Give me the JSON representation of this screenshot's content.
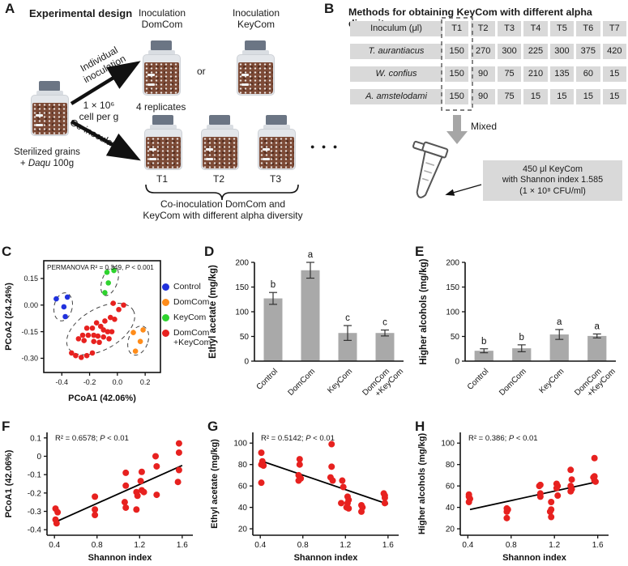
{
  "panel_labels": {
    "A": "A",
    "B": "B",
    "C": "C",
    "D": "D",
    "E": "E",
    "F": "F",
    "G": "G",
    "H": "H"
  },
  "colors": {
    "red": "#e7211f",
    "blue": "#2132dd",
    "orange": "#ff8c1a",
    "green": "#2fd32f",
    "bar": "#a9a9a9",
    "cell_bg": "#d9d9d9",
    "gray_arrow": "#a6a6a6",
    "cap": "#6b7584",
    "glass": "#e3e6ea",
    "grain": "#7c4a36"
  },
  "panels": {
    "A": {
      "title": "Experimental design",
      "inoc_domcom": "Inoculation\nDomCom",
      "inoc_keycom": "Inoculation\nKeyCom",
      "or": "or",
      "individual": "Individual\ninoculation",
      "cell_per_g": "1 × 10⁶\ncell per g",
      "co_inoculation": "Co-inoculation",
      "replicates": "4 replicates",
      "sterilized_pre": "Sterilized grains\n+ ",
      "sterilized_italic": "Daqu",
      "sterilized_post": " 100g",
      "t_labels": [
        "T1",
        "T2",
        "T3"
      ],
      "dots": "●  ●  ●",
      "bracket_caption": "Co-inoculation DomCom and\nKeyCom with different alpha diversity"
    },
    "B": {
      "title": "Methods for obtaining KeyCom with different alpha diversity",
      "table": {
        "header": [
          "Inoculum (μl)",
          "T1",
          "T2",
          "T3",
          "T4",
          "T5",
          "T6",
          "T7"
        ],
        "rows": [
          [
            "T. aurantiacus",
            "150",
            "270",
            "300",
            "225",
            "300",
            "375",
            "420"
          ],
          [
            "W. confius",
            "150",
            "90",
            "75",
            "210",
            "135",
            "60",
            "15"
          ],
          [
            "A. amstelodami",
            "150",
            "90",
            "75",
            "15",
            "15",
            "15",
            "15"
          ]
        ]
      },
      "mixed_label": "Mixed",
      "callout": "450 μl KeyCom\nwith Shannon index 1.585\n(1 × 10⁸ CFU/ml)"
    }
  },
  "chart_data": {
    "C": {
      "type": "scatter",
      "frame": true,
      "xlabel": "PCoA1 (42.06%)",
      "ylabel": "PCoA2 (24.24%)",
      "xlim": [
        -0.53,
        0.31
      ],
      "ylim": [
        -0.38,
        0.25
      ],
      "xticks": [
        [
          -0.4,
          "-0.4"
        ],
        [
          -0.2,
          "-0.2"
        ],
        [
          0,
          "0.0"
        ],
        [
          0.2,
          "0.2"
        ]
      ],
      "yticks": [
        [
          0.15,
          "0.15"
        ],
        [
          0,
          "0.00"
        ],
        [
          -0.15,
          "-0.15"
        ],
        [
          -0.3,
          "-0.30"
        ]
      ],
      "annotation": [
        [
          "PERMANOVA R² = 0.349, ",
          0
        ],
        [
          "P",
          1
        ],
        [
          " < 0.001",
          0
        ]
      ],
      "groups": [
        {
          "name": "Control",
          "color": "#2132dd",
          "points": [
            [
              -0.44,
              0.035
            ],
            [
              -0.36,
              0.045
            ],
            [
              -0.385,
              -0.01
            ],
            [
              -0.375,
              -0.065
            ]
          ]
        },
        {
          "name": "DomCom",
          "color": "#ff8c1a",
          "points": [
            [
              0.115,
              -0.155
            ],
            [
              0.185,
              -0.14
            ],
            [
              0.165,
              -0.205
            ],
            [
              0.13,
              -0.26
            ]
          ]
        },
        {
          "name": "KeyCom",
          "color": "#2fd32f",
          "points": [
            [
              -0.075,
              0.185
            ],
            [
              -0.025,
              0.195
            ],
            [
              -0.065,
              0.125
            ],
            [
              -0.09,
              0.07
            ]
          ]
        },
        {
          "name": "DomCom\n+KeyCom",
          "color": "#e7211f",
          "points": [
            [
              -0.03,
              0.01
            ],
            [
              0.045,
              0.0
            ],
            [
              0.01,
              -0.025
            ],
            [
              -0.05,
              -0.07
            ],
            [
              -0.02,
              -0.08
            ],
            [
              -0.09,
              -0.09
            ],
            [
              -0.15,
              -0.1
            ],
            [
              -0.12,
              -0.12
            ],
            [
              -0.18,
              -0.13
            ],
            [
              -0.22,
              -0.13
            ],
            [
              -0.1,
              -0.14
            ],
            [
              -0.07,
              -0.15
            ],
            [
              -0.04,
              -0.15
            ],
            [
              -0.25,
              -0.17
            ],
            [
              -0.21,
              -0.17
            ],
            [
              -0.17,
              -0.17
            ],
            [
              -0.14,
              -0.175
            ],
            [
              -0.1,
              -0.18
            ],
            [
              -0.28,
              -0.19
            ],
            [
              -0.24,
              -0.2
            ],
            [
              -0.17,
              -0.205
            ],
            [
              -0.13,
              -0.21
            ],
            [
              -0.06,
              -0.19
            ],
            [
              -0.33,
              -0.27
            ],
            [
              -0.3,
              -0.285
            ],
            [
              -0.26,
              -0.295
            ],
            [
              -0.22,
              -0.285
            ],
            [
              -0.18,
              -0.27
            ]
          ]
        }
      ],
      "ellipses": [
        {
          "cx": -0.39,
          "cy": -0.01,
          "rx": 0.065,
          "ry": 0.08,
          "rot": 12
        },
        {
          "cx": -0.055,
          "cy": 0.135,
          "rx": 0.055,
          "ry": 0.085,
          "rot": 20
        },
        {
          "cx": 0.15,
          "cy": -0.2,
          "rx": 0.07,
          "ry": 0.085,
          "rot": 20
        },
        {
          "cx": -0.12,
          "cy": -0.135,
          "rx": 0.27,
          "ry": 0.115,
          "rot": -30
        }
      ]
    },
    "D": {
      "type": "bar",
      "ylabel": "Ethyl acetate (mg/kg)",
      "ylim": [
        0,
        200
      ],
      "yticks": [
        [
          0,
          "0"
        ],
        [
          50,
          "50"
        ],
        [
          100,
          "100"
        ],
        [
          150,
          "150"
        ],
        [
          200,
          "200"
        ]
      ],
      "categories": [
        [
          "Control"
        ],
        [
          "DomCom"
        ],
        [
          "KeyCom"
        ],
        [
          "DomCom",
          "+KeyCom"
        ]
      ],
      "values": [
        127,
        184,
        57,
        57
      ],
      "errors": [
        12,
        16,
        15,
        6
      ],
      "letters": [
        "b",
        "a",
        "c",
        "c"
      ],
      "bar_color": "#a9a9a9"
    },
    "E": {
      "type": "bar",
      "ylabel": "Higher alcohols (mg/kg)",
      "ylim": [
        0,
        200
      ],
      "yticks": [
        [
          0,
          "0"
        ],
        [
          50,
          "50"
        ],
        [
          100,
          "100"
        ],
        [
          150,
          "150"
        ],
        [
          200,
          "200"
        ]
      ],
      "categories": [
        [
          "Control"
        ],
        [
          "DomCom"
        ],
        [
          "KeyCom"
        ],
        [
          "DomCom",
          "+KeyCom"
        ]
      ],
      "values": [
        21,
        26,
        54,
        51
      ],
      "errors": [
        4,
        7,
        10,
        4
      ],
      "letters": [
        "b",
        "b",
        "a",
        "a"
      ],
      "bar_color": "#a9a9a9"
    },
    "F": {
      "type": "scatter",
      "frame": false,
      "xlabel": "Shannon index",
      "ylabel": "PCoA1 (42.06%)",
      "xlim": [
        0.33,
        1.7
      ],
      "ylim": [
        -0.43,
        0.13
      ],
      "xticks": [
        [
          0.4,
          "0.4"
        ],
        [
          0.8,
          "0.8"
        ],
        [
          1.2,
          "1.2"
        ],
        [
          1.6,
          "1.6"
        ]
      ],
      "yticks": [
        [
          0.1,
          "0.1"
        ],
        [
          0,
          "0"
        ],
        [
          -0.1,
          "-0.1"
        ],
        [
          -0.2,
          "-0.2"
        ],
        [
          -0.3,
          "-0.3"
        ],
        [
          -0.4,
          "-0.4"
        ]
      ],
      "annotation": [
        [
          "R² = 0.6578; ",
          0
        ],
        [
          "P",
          1
        ],
        [
          " < 0.01",
          0
        ]
      ],
      "line": [
        [
          0.42,
          -0.355
        ],
        [
          1.6,
          -0.05
        ]
      ],
      "groups": [
        {
          "name": "samples",
          "color": "#e7211f",
          "points": [
            [
              0.41,
              -0.285
            ],
            [
              0.43,
              -0.305
            ],
            [
              0.41,
              -0.345
            ],
            [
              0.42,
              -0.365
            ],
            [
              0.78,
              -0.22
            ],
            [
              0.78,
              -0.29
            ],
            [
              0.78,
              -0.32
            ],
            [
              1.07,
              -0.09
            ],
            [
              1.07,
              -0.16
            ],
            [
              1.06,
              -0.25
            ],
            [
              1.07,
              -0.28
            ],
            [
              1.17,
              -0.195
            ],
            [
              1.18,
              -0.215
            ],
            [
              1.17,
              -0.29
            ],
            [
              1.22,
              -0.085
            ],
            [
              1.21,
              -0.135
            ],
            [
              1.22,
              -0.185
            ],
            [
              1.24,
              -0.195
            ],
            [
              1.35,
              0.0
            ],
            [
              1.36,
              -0.055
            ],
            [
              1.36,
              -0.21
            ],
            [
              1.57,
              0.07
            ],
            [
              1.57,
              0.02
            ],
            [
              1.57,
              -0.075
            ],
            [
              1.56,
              -0.14
            ]
          ]
        }
      ]
    },
    "G": {
      "type": "scatter",
      "frame": false,
      "xlabel": "Shannon index",
      "ylabel": "Ethyl acetate (mg/kg)",
      "xlim": [
        0.33,
        1.7
      ],
      "ylim": [
        14,
        110
      ],
      "xticks": [
        [
          0.4,
          "0.4"
        ],
        [
          0.8,
          "0.8"
        ],
        [
          1.2,
          "1.2"
        ],
        [
          1.6,
          "1.6"
        ]
      ],
      "yticks": [
        [
          20,
          "20"
        ],
        [
          40,
          "40"
        ],
        [
          60,
          "60"
        ],
        [
          80,
          "80"
        ],
        [
          100,
          "100"
        ]
      ],
      "annotation": [
        [
          "R² = 0.5142; ",
          0
        ],
        [
          "P",
          1
        ],
        [
          " < 0.01",
          0
        ]
      ],
      "line": [
        [
          0.42,
          83
        ],
        [
          1.6,
          43
        ]
      ],
      "groups": [
        {
          "name": "samples",
          "color": "#e7211f",
          "points": [
            [
              0.41,
              91
            ],
            [
              0.42,
              83
            ],
            [
              0.41,
              80
            ],
            [
              0.43,
              79
            ],
            [
              0.41,
              63
            ],
            [
              0.77,
              85
            ],
            [
              0.77,
              80
            ],
            [
              0.76,
              70
            ],
            [
              0.78,
              67
            ],
            [
              0.76,
              65
            ],
            [
              1.07,
              99
            ],
            [
              1.07,
              78
            ],
            [
              1.06,
              68
            ],
            [
              1.08,
              65
            ],
            [
              1.17,
              65
            ],
            [
              1.18,
              59
            ],
            [
              1.16,
              44
            ],
            [
              1.22,
              50
            ],
            [
              1.23,
              47
            ],
            [
              1.22,
              44
            ],
            [
              1.21,
              40
            ],
            [
              1.23,
              39
            ],
            [
              1.35,
              42
            ],
            [
              1.36,
              40
            ],
            [
              1.35,
              36
            ],
            [
              1.56,
              53
            ],
            [
              1.57,
              51
            ],
            [
              1.57,
              49
            ],
            [
              1.57,
              44
            ]
          ]
        }
      ]
    },
    "H": {
      "type": "scatter",
      "frame": false,
      "xlabel": "Shannon index",
      "ylabel": "Higher alcohols (mg/kg)",
      "xlim": [
        0.33,
        1.7
      ],
      "ylim": [
        14,
        110
      ],
      "xticks": [
        [
          0.4,
          "0.4"
        ],
        [
          0.8,
          "0.8"
        ],
        [
          1.2,
          "1.2"
        ],
        [
          1.6,
          "1.6"
        ]
      ],
      "yticks": [
        [
          20,
          "20"
        ],
        [
          40,
          "40"
        ],
        [
          60,
          "60"
        ],
        [
          80,
          "80"
        ],
        [
          100,
          "100"
        ]
      ],
      "annotation": [
        [
          "R² = 0.386; ",
          0
        ],
        [
          "P",
          1
        ],
        [
          " < 0.01",
          0
        ]
      ],
      "line": [
        [
          0.42,
          38
        ],
        [
          1.6,
          64
        ]
      ],
      "groups": [
        {
          "name": "samples",
          "color": "#e7211f",
          "points": [
            [
              0.41,
              52
            ],
            [
              0.41,
              50
            ],
            [
              0.42,
              48
            ],
            [
              0.41,
              45
            ],
            [
              0.76,
              39
            ],
            [
              0.77,
              38
            ],
            [
              0.76,
              36
            ],
            [
              0.76,
              30
            ],
            [
              1.07,
              61
            ],
            [
              1.06,
              60
            ],
            [
              1.07,
              53
            ],
            [
              1.07,
              50
            ],
            [
              1.17,
              45
            ],
            [
              1.17,
              38
            ],
            [
              1.16,
              36
            ],
            [
              1.17,
              31
            ],
            [
              1.22,
              62
            ],
            [
              1.23,
              60
            ],
            [
              1.22,
              58
            ],
            [
              1.23,
              51
            ],
            [
              1.35,
              75
            ],
            [
              1.36,
              66
            ],
            [
              1.35,
              60
            ],
            [
              1.36,
              57
            ],
            [
              1.35,
              55
            ],
            [
              1.57,
              86
            ],
            [
              1.57,
              69
            ],
            [
              1.56,
              68
            ],
            [
              1.57,
              65
            ],
            [
              1.58,
              64
            ]
          ]
        }
      ]
    }
  }
}
